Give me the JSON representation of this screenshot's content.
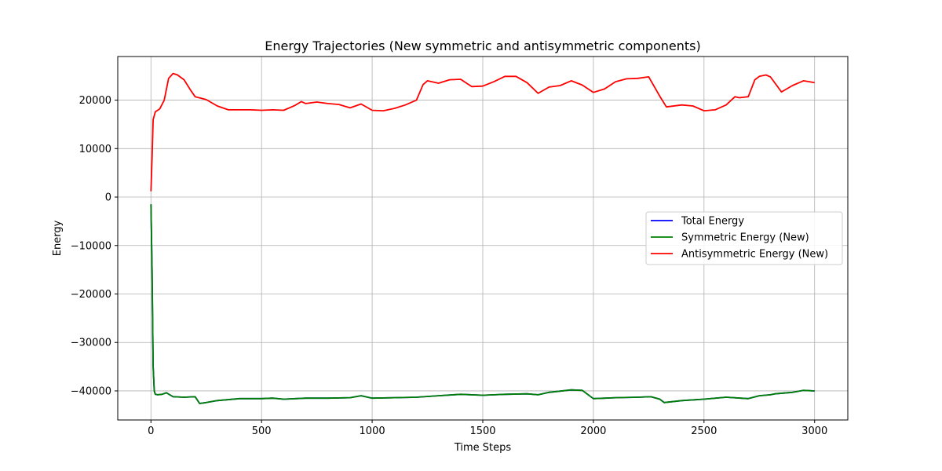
{
  "chart_data": {
    "type": "line",
    "title": "Energy Trajectories (New symmetric and antisymmetric components)",
    "xlabel": "Time Steps",
    "ylabel": "Energy",
    "xlim": [
      -150,
      3150
    ],
    "ylim": [
      -46000,
      29000
    ],
    "xticks": [
      0,
      500,
      1000,
      1500,
      2000,
      2500,
      3000
    ],
    "xtick_labels": [
      "0",
      "500",
      "1000",
      "1500",
      "2000",
      "2500",
      "3000"
    ],
    "yticks": [
      -40000,
      -30000,
      -20000,
      -10000,
      0,
      10000,
      20000
    ],
    "ytick_labels": [
      "−40000",
      "−30000",
      "−20000",
      "−10000",
      "0",
      "10000",
      "20000"
    ],
    "grid": true,
    "legend_position": "center-right",
    "series": [
      {
        "name": "Total Energy",
        "color": "#0000ff",
        "x": [
          0,
          5,
          10,
          15,
          20,
          30,
          50,
          70,
          100,
          150,
          200,
          220,
          250,
          300,
          400,
          500,
          550,
          600,
          700,
          800,
          900,
          950,
          1000,
          1100,
          1200,
          1300,
          1400,
          1500,
          1600,
          1700,
          1750,
          1800,
          1900,
          1950,
          2000,
          2100,
          2200,
          2260,
          2300,
          2320,
          2400,
          2500,
          2600,
          2700,
          2750,
          2800,
          2820,
          2900,
          2950,
          3000
        ],
        "y": [
          -1500,
          -15000,
          -35000,
          -40000,
          -40700,
          -40800,
          -40700,
          -40400,
          -41200,
          -41300,
          -41200,
          -42600,
          -42400,
          -42000,
          -41600,
          -41600,
          -41500,
          -41700,
          -41500,
          -41500,
          -41400,
          -41000,
          -41500,
          -41400,
          -41300,
          -41000,
          -40700,
          -40900,
          -40700,
          -40600,
          -40800,
          -40300,
          -39800,
          -39900,
          -41600,
          -41400,
          -41300,
          -41200,
          -41700,
          -42400,
          -42000,
          -41700,
          -41300,
          -41600,
          -41000,
          -40800,
          -40600,
          -40300,
          -39900,
          -40000
        ]
      },
      {
        "name": "Symmetric Energy (New)",
        "color": "#008000",
        "x": [
          0,
          5,
          10,
          15,
          20,
          30,
          50,
          70,
          100,
          150,
          200,
          220,
          250,
          300,
          400,
          500,
          550,
          600,
          700,
          800,
          900,
          950,
          1000,
          1100,
          1200,
          1300,
          1400,
          1500,
          1600,
          1700,
          1750,
          1800,
          1900,
          1950,
          2000,
          2100,
          2200,
          2260,
          2300,
          2320,
          2400,
          2500,
          2600,
          2700,
          2750,
          2800,
          2820,
          2900,
          2950,
          3000
        ],
        "y": [
          -1500,
          -15000,
          -35000,
          -40000,
          -40700,
          -40800,
          -40700,
          -40400,
          -41200,
          -41300,
          -41200,
          -42600,
          -42400,
          -42000,
          -41600,
          -41600,
          -41500,
          -41700,
          -41500,
          -41500,
          -41400,
          -41000,
          -41500,
          -41400,
          -41300,
          -41000,
          -40700,
          -40900,
          -40700,
          -40600,
          -40800,
          -40300,
          -39800,
          -39900,
          -41600,
          -41400,
          -41300,
          -41200,
          -41700,
          -42400,
          -42000,
          -41700,
          -41300,
          -41600,
          -41000,
          -40800,
          -40600,
          -40300,
          -39900,
          -40000
        ]
      },
      {
        "name": "Antisymmetric Energy (New)",
        "color": "#ff0000",
        "x": [
          0,
          5,
          10,
          20,
          40,
          60,
          80,
          100,
          120,
          150,
          180,
          200,
          250,
          300,
          350,
          400,
          450,
          500,
          550,
          600,
          650,
          680,
          700,
          750,
          800,
          850,
          900,
          950,
          1000,
          1050,
          1100,
          1150,
          1200,
          1230,
          1250,
          1300,
          1350,
          1400,
          1450,
          1500,
          1550,
          1600,
          1650,
          1700,
          1750,
          1800,
          1850,
          1900,
          1950,
          2000,
          2050,
          2100,
          2150,
          2200,
          2250,
          2300,
          2330,
          2400,
          2450,
          2500,
          2550,
          2600,
          2640,
          2660,
          2700,
          2730,
          2750,
          2780,
          2800,
          2850,
          2900,
          2950,
          3000
        ],
        "y": [
          1200,
          8000,
          16000,
          17600,
          18200,
          20000,
          24500,
          25500,
          25200,
          24200,
          22000,
          20700,
          20100,
          18800,
          18000,
          18000,
          18000,
          17900,
          18000,
          17900,
          18900,
          19700,
          19300,
          19600,
          19300,
          19100,
          18400,
          19200,
          17900,
          17800,
          18300,
          19000,
          20000,
          23200,
          24000,
          23500,
          24200,
          24300,
          22800,
          22900,
          23800,
          24900,
          24900,
          23600,
          21400,
          22700,
          23000,
          24000,
          23100,
          21600,
          22300,
          23800,
          24400,
          24500,
          24800,
          20800,
          18600,
          19000,
          18800,
          17800,
          18000,
          19000,
          20700,
          20500,
          20700,
          24200,
          24900,
          25200,
          24800,
          21700,
          23000,
          24000,
          23600
        ]
      }
    ]
  }
}
